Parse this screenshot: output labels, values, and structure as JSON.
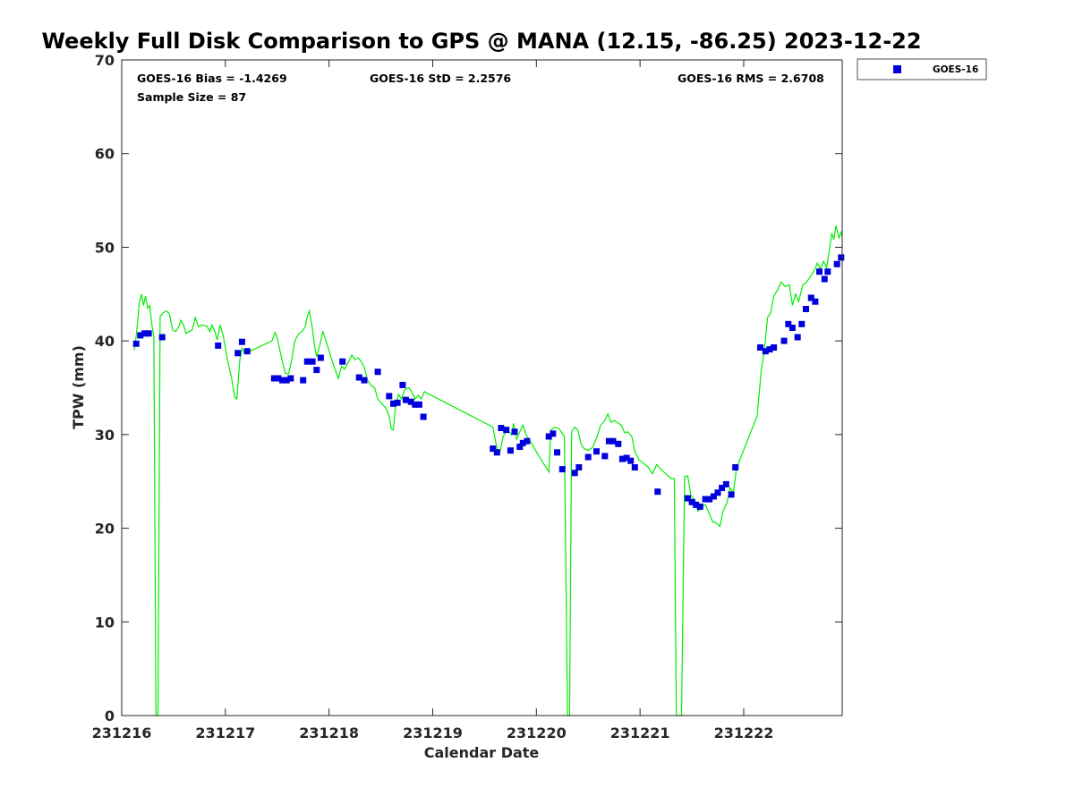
{
  "chart_data": {
    "type": "scatter",
    "title": "Weekly Full Disk Comparison to GPS @ MANA (12.15, -86.25) 2023-12-22",
    "xlabel": "Calendar Date",
    "ylabel": "TPW (mm)",
    "xlim": [
      0,
      6.95
    ],
    "ylim": [
      0,
      70
    ],
    "x_ticks": [
      0,
      1,
      2,
      3,
      4,
      5,
      6
    ],
    "x_tick_labels": [
      "231216",
      "231217",
      "231218",
      "231219",
      "231220",
      "231221",
      "231222"
    ],
    "y_ticks": [
      0,
      10,
      20,
      30,
      40,
      50,
      60,
      70
    ],
    "y_tick_labels": [
      "0",
      "10",
      "20",
      "30",
      "40",
      "50",
      "60",
      "70"
    ],
    "x_unit_note": "x values in days after 231216",
    "grid": false,
    "legend_position": "top-right outside",
    "stats": {
      "bias": "GOES-16 Bias = -1.4269",
      "std": "GOES-16 StD = 2.2576",
      "rms": "GOES-16 RMS = 2.6708",
      "sample": "Sample Size = 87"
    },
    "series": [
      {
        "name": "GOES-16",
        "kind": "scatter",
        "color": "#0000dd",
        "points": [
          [
            0.14,
            39.7
          ],
          [
            0.18,
            40.6
          ],
          [
            0.22,
            40.8
          ],
          [
            0.26,
            40.8
          ],
          [
            0.39,
            40.4
          ],
          [
            0.93,
            39.5
          ],
          [
            1.12,
            38.7
          ],
          [
            1.16,
            39.9
          ],
          [
            1.21,
            38.9
          ],
          [
            1.47,
            36.0
          ],
          [
            1.51,
            36.0
          ],
          [
            1.55,
            35.8
          ],
          [
            1.59,
            35.8
          ],
          [
            1.63,
            36.0
          ],
          [
            1.75,
            35.8
          ],
          [
            1.79,
            37.8
          ],
          [
            1.84,
            37.8
          ],
          [
            1.88,
            36.9
          ],
          [
            1.92,
            38.2
          ],
          [
            2.13,
            37.8
          ],
          [
            2.29,
            36.1
          ],
          [
            2.34,
            35.8
          ],
          [
            2.47,
            36.7
          ],
          [
            2.58,
            34.1
          ],
          [
            2.62,
            33.3
          ],
          [
            2.66,
            33.4
          ],
          [
            2.71,
            35.3
          ],
          [
            2.74,
            33.7
          ],
          [
            2.79,
            33.5
          ],
          [
            2.83,
            33.2
          ],
          [
            2.87,
            33.2
          ],
          [
            2.91,
            31.9
          ],
          [
            3.58,
            28.5
          ],
          [
            3.62,
            28.1
          ],
          [
            3.66,
            30.7
          ],
          [
            3.71,
            30.5
          ],
          [
            3.75,
            28.3
          ],
          [
            3.79,
            30.3
          ],
          [
            3.84,
            28.7
          ],
          [
            3.87,
            29.1
          ],
          [
            3.91,
            29.3
          ],
          [
            4.12,
            29.8
          ],
          [
            4.16,
            30.1
          ],
          [
            4.2,
            28.1
          ],
          [
            4.25,
            26.3
          ],
          [
            4.37,
            25.9
          ],
          [
            4.41,
            26.5
          ],
          [
            4.5,
            27.6
          ],
          [
            4.58,
            28.2
          ],
          [
            4.66,
            27.7
          ],
          [
            4.7,
            29.3
          ],
          [
            4.74,
            29.3
          ],
          [
            4.79,
            29.0
          ],
          [
            4.83,
            27.4
          ],
          [
            4.87,
            27.5
          ],
          [
            4.91,
            27.2
          ],
          [
            4.95,
            26.5
          ],
          [
            5.17,
            23.9
          ],
          [
            5.46,
            23.2
          ],
          [
            5.5,
            22.8
          ],
          [
            5.54,
            22.5
          ],
          [
            5.58,
            22.3
          ],
          [
            5.63,
            23.1
          ],
          [
            5.67,
            23.1
          ],
          [
            5.71,
            23.4
          ],
          [
            5.75,
            23.8
          ],
          [
            5.79,
            24.3
          ],
          [
            5.83,
            24.7
          ],
          [
            5.88,
            23.6
          ],
          [
            5.92,
            26.5
          ],
          [
            6.16,
            39.3
          ],
          [
            6.21,
            38.9
          ],
          [
            6.25,
            39.1
          ],
          [
            6.29,
            39.3
          ],
          [
            6.39,
            40.0
          ],
          [
            6.43,
            41.8
          ],
          [
            6.47,
            41.4
          ],
          [
            6.52,
            40.4
          ],
          [
            6.56,
            41.8
          ],
          [
            6.6,
            43.4
          ],
          [
            6.65,
            44.6
          ],
          [
            6.69,
            44.2
          ],
          [
            6.73,
            47.4
          ],
          [
            6.78,
            46.6
          ],
          [
            6.81,
            47.4
          ],
          [
            6.9,
            48.2
          ],
          [
            6.94,
            48.9
          ]
        ]
      },
      {
        "name": "",
        "kind": "line",
        "color": "#00ee00",
        "points": [
          [
            0.12,
            39.0
          ],
          [
            0.14,
            40.5
          ],
          [
            0.17,
            44.0
          ],
          [
            0.19,
            45.0
          ],
          [
            0.21,
            43.8
          ],
          [
            0.23,
            44.8
          ],
          [
            0.25,
            43.5
          ],
          [
            0.27,
            43.8
          ],
          [
            0.29,
            41.8
          ],
          [
            0.31,
            40.4
          ],
          [
            0.33,
            0.0
          ],
          [
            0.35,
            0.0
          ],
          [
            0.37,
            42.6
          ],
          [
            0.4,
            43.0
          ],
          [
            0.43,
            43.2
          ],
          [
            0.46,
            42.9
          ],
          [
            0.49,
            41.2
          ],
          [
            0.52,
            41.0
          ],
          [
            0.55,
            41.5
          ],
          [
            0.57,
            42.2
          ],
          [
            0.6,
            41.6
          ],
          [
            0.62,
            40.8
          ],
          [
            0.65,
            41.0
          ],
          [
            0.68,
            41.2
          ],
          [
            0.71,
            42.5
          ],
          [
            0.74,
            41.5
          ],
          [
            0.77,
            41.7
          ],
          [
            0.8,
            41.6
          ],
          [
            0.82,
            41.6
          ],
          [
            0.85,
            41.0
          ],
          [
            0.87,
            41.7
          ],
          [
            0.9,
            41.0
          ],
          [
            0.92,
            40.1
          ],
          [
            0.95,
            41.7
          ],
          [
            0.98,
            40.5
          ],
          [
            1.02,
            38.0
          ],
          [
            1.06,
            36.0
          ],
          [
            1.09,
            34.0
          ],
          [
            1.11,
            33.8
          ],
          [
            1.14,
            38.0
          ],
          [
            1.16,
            39.2
          ],
          [
            1.19,
            38.6
          ],
          [
            1.22,
            38.8
          ],
          [
            1.45,
            40.0
          ],
          [
            1.48,
            40.9
          ],
          [
            1.5,
            40.3
          ],
          [
            1.53,
            38.8
          ],
          [
            1.56,
            37.3
          ],
          [
            1.58,
            36.5
          ],
          [
            1.61,
            36.5
          ],
          [
            1.64,
            38.0
          ],
          [
            1.67,
            40.0
          ],
          [
            1.71,
            40.8
          ],
          [
            1.74,
            41.0
          ],
          [
            1.77,
            41.5
          ],
          [
            1.79,
            42.6
          ],
          [
            1.81,
            43.2
          ],
          [
            1.84,
            41.3
          ],
          [
            1.86,
            39.5
          ],
          [
            1.88,
            38.3
          ],
          [
            1.91,
            39.5
          ],
          [
            1.94,
            41.0
          ],
          [
            1.97,
            40.0
          ],
          [
            2.01,
            38.6
          ],
          [
            2.05,
            37.2
          ],
          [
            2.09,
            36.0
          ],
          [
            2.12,
            37.3
          ],
          [
            2.15,
            37.0
          ],
          [
            2.19,
            37.8
          ],
          [
            2.22,
            38.5
          ],
          [
            2.25,
            38.0
          ],
          [
            2.28,
            38.2
          ],
          [
            2.31,
            37.8
          ],
          [
            2.34,
            37.2
          ],
          [
            2.37,
            35.8
          ],
          [
            2.41,
            35.2
          ],
          [
            2.44,
            35.0
          ],
          [
            2.47,
            33.8
          ],
          [
            2.51,
            33.3
          ],
          [
            2.55,
            32.8
          ],
          [
            2.58,
            32.0
          ],
          [
            2.6,
            30.6
          ],
          [
            2.62,
            30.5
          ],
          [
            2.64,
            33.0
          ],
          [
            2.67,
            34.3
          ],
          [
            2.7,
            33.8
          ],
          [
            2.73,
            34.8
          ],
          [
            2.77,
            35.0
          ],
          [
            2.8,
            34.5
          ],
          [
            2.83,
            33.8
          ],
          [
            2.86,
            34.2
          ],
          [
            2.89,
            33.8
          ],
          [
            2.92,
            34.6
          ],
          [
            2.95,
            34.4
          ],
          [
            3.58,
            30.8
          ],
          [
            3.62,
            28.5
          ],
          [
            3.65,
            28.2
          ],
          [
            3.68,
            29.8
          ],
          [
            3.72,
            30.5
          ],
          [
            3.76,
            30.0
          ],
          [
            3.78,
            31.2
          ],
          [
            3.81,
            29.5
          ],
          [
            3.84,
            30.3
          ],
          [
            3.87,
            31.0
          ],
          [
            3.9,
            30.0
          ],
          [
            3.93,
            29.5
          ],
          [
            4.03,
            27.6
          ],
          [
            4.12,
            26.0
          ],
          [
            4.14,
            30.5
          ],
          [
            4.18,
            30.8
          ],
          [
            4.22,
            30.6
          ],
          [
            4.27,
            29.8
          ],
          [
            4.3,
            0.0
          ],
          [
            4.32,
            0.0
          ],
          [
            4.34,
            30.3
          ],
          [
            4.37,
            30.8
          ],
          [
            4.4,
            30.5
          ],
          [
            4.43,
            29.0
          ],
          [
            4.46,
            28.5
          ],
          [
            4.5,
            28.3
          ],
          [
            4.54,
            28.6
          ],
          [
            4.58,
            29.6
          ],
          [
            4.62,
            31.0
          ],
          [
            4.66,
            31.5
          ],
          [
            4.69,
            32.2
          ],
          [
            4.72,
            31.3
          ],
          [
            4.75,
            31.5
          ],
          [
            4.79,
            31.2
          ],
          [
            4.82,
            31.0
          ],
          [
            4.85,
            30.2
          ],
          [
            4.88,
            30.3
          ],
          [
            4.92,
            29.8
          ],
          [
            4.95,
            28.2
          ],
          [
            4.99,
            27.3
          ],
          [
            5.03,
            27.0
          ],
          [
            5.08,
            26.5
          ],
          [
            5.12,
            25.8
          ],
          [
            5.16,
            26.8
          ],
          [
            5.2,
            26.3
          ],
          [
            5.25,
            25.8
          ],
          [
            5.3,
            25.3
          ],
          [
            5.33,
            25.3
          ],
          [
            5.35,
            0.0
          ],
          [
            5.4,
            0.0
          ],
          [
            5.43,
            25.5
          ],
          [
            5.46,
            25.6
          ],
          [
            5.49,
            23.5
          ],
          [
            5.53,
            23.0
          ],
          [
            5.56,
            21.8
          ],
          [
            5.59,
            22.3
          ],
          [
            5.63,
            22.5
          ],
          [
            5.67,
            21.5
          ],
          [
            5.7,
            20.7
          ],
          [
            5.73,
            20.6
          ],
          [
            5.77,
            20.2
          ],
          [
            5.8,
            21.8
          ],
          [
            5.84,
            22.8
          ],
          [
            5.87,
            24.3
          ],
          [
            5.9,
            23.8
          ],
          [
            5.93,
            26.4
          ],
          [
            6.13,
            32.0
          ],
          [
            6.17,
            37.0
          ],
          [
            6.2,
            39.0
          ],
          [
            6.23,
            42.5
          ],
          [
            6.26,
            43.0
          ],
          [
            6.29,
            44.8
          ],
          [
            6.33,
            45.5
          ],
          [
            6.36,
            46.3
          ],
          [
            6.4,
            45.8
          ],
          [
            6.44,
            46.0
          ],
          [
            6.47,
            43.8
          ],
          [
            6.5,
            45.0
          ],
          [
            6.53,
            44.2
          ],
          [
            6.57,
            46.0
          ],
          [
            6.6,
            46.2
          ],
          [
            6.64,
            46.8
          ],
          [
            6.68,
            47.5
          ],
          [
            6.71,
            48.3
          ],
          [
            6.74,
            47.7
          ],
          [
            6.77,
            48.5
          ],
          [
            6.8,
            47.8
          ],
          [
            6.83,
            50.0
          ],
          [
            6.85,
            51.5
          ],
          [
            6.87,
            50.8
          ],
          [
            6.89,
            52.3
          ],
          [
            6.92,
            51.0
          ],
          [
            6.94,
            51.6
          ],
          [
            6.95,
            51.2
          ]
        ]
      }
    ]
  }
}
